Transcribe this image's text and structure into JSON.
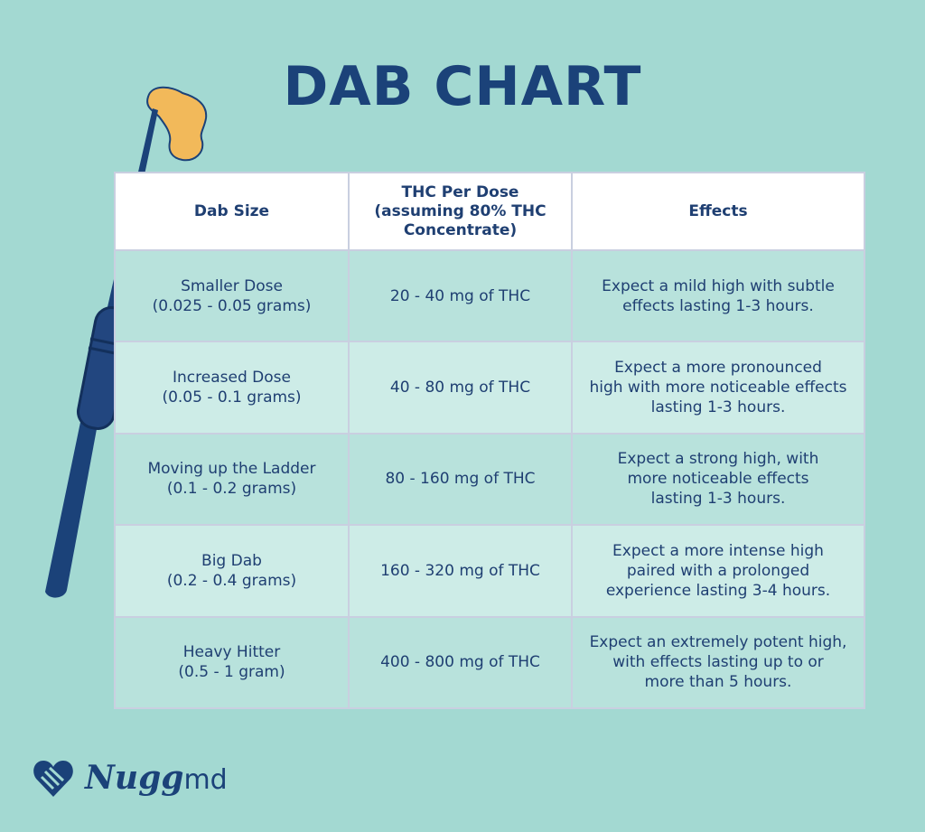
{
  "title": "DAB CHART",
  "table": {
    "headers": {
      "size": "Dab Size",
      "thc_lines": [
        "THC Per Dose",
        "(assuming 80% THC",
        "Concentrate)"
      ],
      "effects": "Effects"
    },
    "rows": [
      {
        "size_lines": [
          "Smaller Dose",
          "(0.025 - 0.05 grams)"
        ],
        "thc": "20 - 40 mg of THC",
        "effects_lines": [
          "Expect a mild high with subtle",
          "effects lasting 1-3 hours."
        ]
      },
      {
        "size_lines": [
          "Increased Dose",
          "(0.05 - 0.1 grams)"
        ],
        "thc": "40 - 80 mg of THC",
        "effects_lines": [
          "Expect a more pronounced",
          "high with more noticeable effects",
          "lasting 1-3 hours."
        ]
      },
      {
        "size_lines": [
          "Moving up the Ladder",
          "(0.1 - 0.2 grams)"
        ],
        "thc": "80 - 160 mg of THC",
        "effects_lines": [
          "Expect a strong high, with",
          "more noticeable effects",
          "lasting 1-3 hours."
        ]
      },
      {
        "size_lines": [
          "Big Dab",
          "(0.2 - 0.4 grams)"
        ],
        "thc": "160 - 320 mg of THC",
        "effects_lines": [
          "Expect a more intense high",
          "paired with a prolonged",
          "experience lasting 3-4 hours."
        ]
      },
      {
        "size_lines": [
          "Heavy Hitter",
          "(0.5 - 1 gram)"
        ],
        "thc": "400 - 800 mg of THC",
        "effects_lines": [
          "Expect an extremely potent high,",
          "with effects lasting up to or",
          "more than 5 hours."
        ]
      }
    ]
  },
  "brand": {
    "name": "Nugg",
    "suffix": "md",
    "icon": "heart-logo-icon"
  },
  "colors": {
    "background": "#a3d9d2",
    "navy": "#1b4279",
    "row_dark": "#b8e2dc",
    "row_light": "#cdece7",
    "wax": "#f2b95a"
  }
}
